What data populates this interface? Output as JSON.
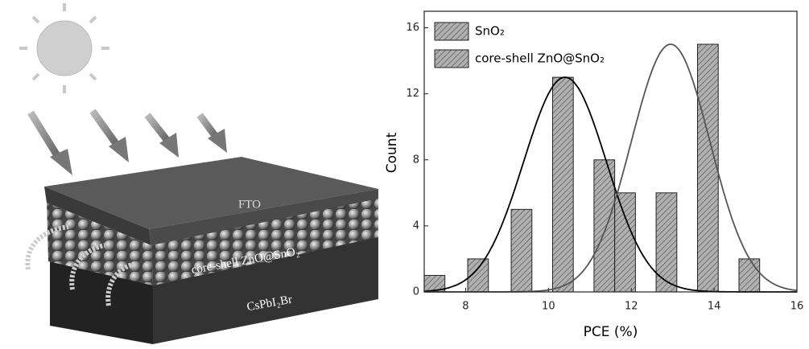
{
  "schematic": {
    "layers": [
      "FTO",
      "core-shell ZnO@SnO₂",
      "CsPbI₂Br"
    ]
  },
  "chart_data": {
    "type": "histogram",
    "x_label": "PCE (%)",
    "y_label": "Count",
    "xlim": [
      7,
      16
    ],
    "xticks": [
      8,
      10,
      12,
      14,
      16
    ],
    "ylim": [
      0,
      17
    ],
    "yticks": [
      0,
      4,
      8,
      12,
      16
    ],
    "legend": "upper left",
    "series": [
      {
        "name": "SnO₂",
        "color": "#a8a8a8",
        "x": [
          7.25,
          8.3,
          9.35,
          10.35,
          11.35
        ],
        "values": [
          1,
          2,
          5,
          13,
          8
        ],
        "fit": {
          "center": 10.4,
          "sigma": 1.0,
          "peak": 13
        },
        "fit_color": "#000000"
      },
      {
        "name": "core-shell ZnO@SnO₂",
        "color": "#a8a8a8",
        "x": [
          11.85,
          12.85,
          13.85,
          14.85
        ],
        "values": [
          6,
          6,
          15,
          2
        ],
        "fit": {
          "center": 12.95,
          "sigma": 0.95,
          "peak": 15
        },
        "fit_color": "#555555"
      }
    ]
  }
}
